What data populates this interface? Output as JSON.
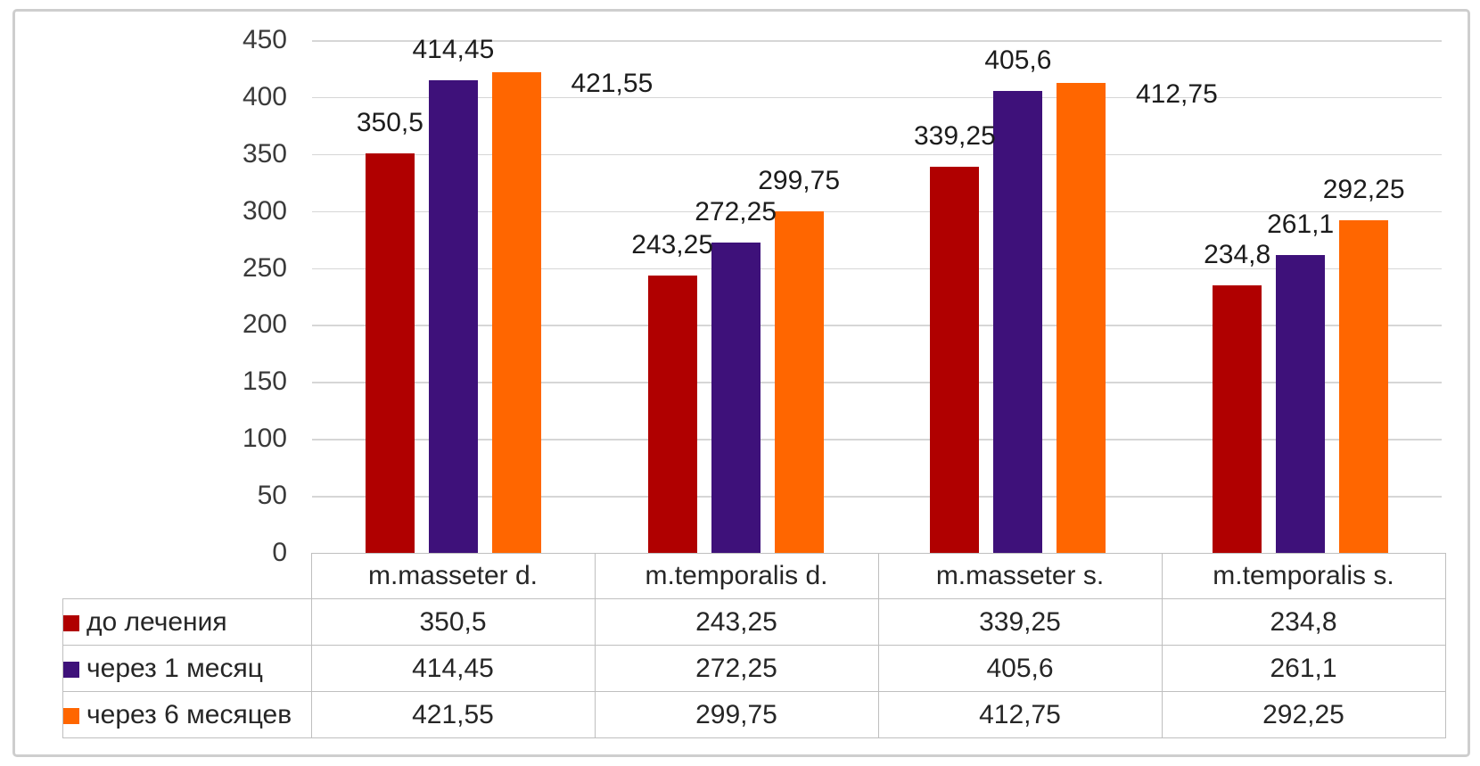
{
  "chart_data": {
    "type": "bar",
    "title": "",
    "xlabel": "",
    "ylabel": "",
    "categories": [
      "m.masseter d.",
      "m.temporalis d.",
      "m.masseter s.",
      "m.temporalis s."
    ],
    "series": [
      {
        "name": "до лечения",
        "color": "#b00000",
        "values": [
          350.5,
          243.25,
          339.25,
          234.8
        ],
        "labels": [
          "350,5",
          "243,25",
          "339,25",
          "234,8"
        ],
        "label_placement": [
          "above",
          "above",
          "above",
          "above"
        ]
      },
      {
        "name": "через 1 месяц",
        "color": "#3e117a",
        "values": [
          414.45,
          272.25,
          405.6,
          261.1
        ],
        "labels": [
          "414,45",
          "272,25",
          "405,6",
          "261,1"
        ],
        "label_placement": [
          "above",
          "above",
          "above",
          "above"
        ]
      },
      {
        "name": "через 6 месяцев",
        "color": "#ff6600",
        "values": [
          421.55,
          299.75,
          412.75,
          292.25
        ],
        "labels": [
          "421,55",
          "299,75",
          "412,75",
          "292,25"
        ],
        "label_placement": [
          "right",
          "above",
          "right",
          "above"
        ]
      }
    ],
    "y_axis": {
      "min": 0,
      "max": 450,
      "step": 50,
      "tick_labels": [
        "0",
        "50",
        "100",
        "150",
        "200",
        "250",
        "300",
        "350",
        "400",
        "450"
      ]
    },
    "grid": true,
    "legend_position": "table-left-column",
    "data_table_shown": true
  }
}
